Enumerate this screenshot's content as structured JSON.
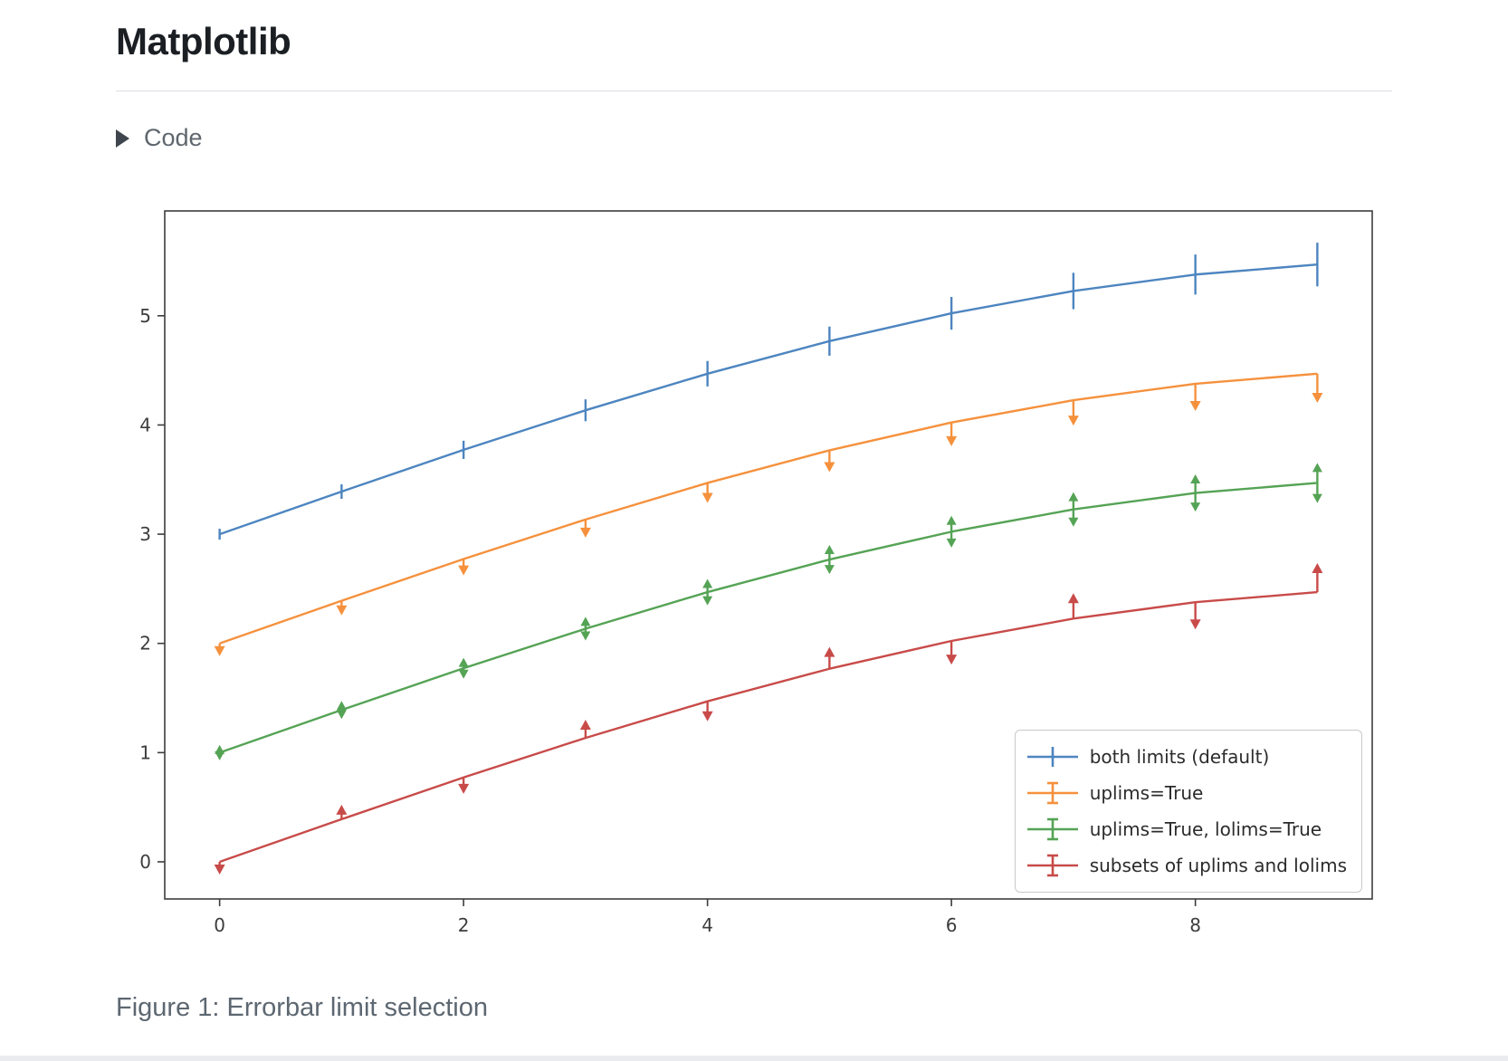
{
  "page": {
    "title": "Matplotlib",
    "code_toggle_label": "Code",
    "caption": "Figure 1: Errorbar limit selection"
  },
  "chart_data": {
    "type": "line",
    "title": "",
    "xlabel": "",
    "ylabel": "",
    "grid": false,
    "legend_position": "lower right",
    "xlim": [
      -0.45,
      9.45
    ],
    "ylim": [
      -0.34,
      5.96
    ],
    "xticks": [
      0,
      2,
      4,
      6,
      8
    ],
    "yticks": [
      0,
      1,
      2,
      3,
      4,
      5
    ],
    "axis_color": "#3d3d3d",
    "x": [
      0,
      1,
      2,
      3,
      4,
      5,
      6,
      7,
      8,
      9
    ],
    "yerr": [
      0.05,
      0.0667,
      0.0833,
      0.1,
      0.1167,
      0.1333,
      0.15,
      0.1667,
      0.1833,
      0.2
    ],
    "series": [
      {
        "name": "both limits (default)",
        "color": "#4d85c0",
        "limits": "none",
        "legend_glyph": "plain",
        "values": [
          3.0,
          3.3902,
          3.7725,
          4.1346,
          4.4695,
          4.7678,
          5.0225,
          5.227,
          5.3776,
          5.4692
        ]
      },
      {
        "name": "uplims=True",
        "color": "#f5913d",
        "limits": "uplims",
        "legend_glyph": "capped",
        "values": [
          2.0,
          2.3902,
          2.7725,
          3.1346,
          3.4695,
          3.7678,
          4.0225,
          4.227,
          4.3776,
          4.4692
        ]
      },
      {
        "name": "uplims=True, lolims=True",
        "color": "#55a355",
        "limits": "both",
        "legend_glyph": "capped",
        "values": [
          1.0,
          1.3902,
          1.7725,
          2.1346,
          2.4695,
          2.7678,
          3.0225,
          3.227,
          3.3776,
          3.4692
        ]
      },
      {
        "name": "subsets of uplims and lolims",
        "color": "#c84b49",
        "limits": "alternating",
        "legend_glyph": "capped",
        "values": [
          0.0,
          0.3902,
          0.7725,
          1.1346,
          1.4695,
          1.7678,
          2.0225,
          2.227,
          2.3776,
          2.4692
        ],
        "uplims": [
          true,
          false,
          true,
          false,
          true,
          false,
          true,
          false,
          true,
          false
        ],
        "lolims": [
          false,
          true,
          false,
          true,
          false,
          true,
          false,
          true,
          false,
          true
        ]
      }
    ]
  }
}
